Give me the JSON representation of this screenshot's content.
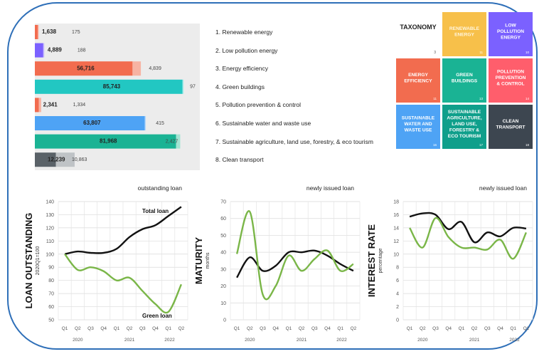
{
  "bar_chart": {
    "categories": [
      "1. Renewable energy",
      "2. Low pollution energy",
      "3. Energy efficiency",
      "4. Green buildings",
      "5. Pollution prevention & control",
      "6. Sustainable water and waste use",
      "7. Sustainable agriculture, land use, forestry, & eco tourism",
      "8. Clean transport"
    ],
    "values_a": [
      1638,
      4889,
      56716,
      85743,
      2341,
      63807,
      81968,
      12239
    ],
    "values_b": [
      175,
      188,
      4839,
      97,
      1334,
      415,
      2427,
      10863
    ],
    "labels_a": [
      "1,638",
      "4,889",
      "56,716",
      "85,743",
      "2,341",
      "63,807",
      "81,968",
      "12,239"
    ],
    "labels_b": [
      "175",
      "188",
      "4,839",
      "97",
      "1,334",
      "415",
      "2,427",
      "10,863"
    ],
    "colors_a": [
      "#f26c4f",
      "#7b61ff",
      "#f26c4f",
      "#22c7c2",
      "#f26c4f",
      "#4ea3f5",
      "#1ab394",
      "#5a6268"
    ],
    "colors_b": [
      "#f7b3a3",
      "#c9c0ff",
      "#f7b3a3",
      "#a6ecea",
      "#f7b3a3",
      "#b4d8fb",
      "#a3e4d3",
      "#bfc3c6"
    ]
  },
  "taxonomy": {
    "title": "TAXONOMY",
    "cells": [
      {
        "label": "RENEWABLE ENERGY",
        "num": "11",
        "color": "#f7c04a"
      },
      {
        "label": "LOW POLLUTION ENERGY",
        "num": "10",
        "color": "#7b61ff"
      },
      {
        "label": "ENERGY EFFICIENCY",
        "num": "11",
        "color": "#f26c4f"
      },
      {
        "label": "GREEN BUILDINGS",
        "num": "13",
        "color": "#1ab394"
      },
      {
        "label": "POLLUTION PREVENTION & CONTROL",
        "num": "14",
        "color": "#ff5e6c"
      },
      {
        "label": "SUSTAINABLE WATER AND WASTE USE",
        "num": "16",
        "color": "#4ea3f5"
      },
      {
        "label": "SUSTAINABLE AGRICULTURE, LAND USE, FORESTRY & ECO TOURISM",
        "num": "17",
        "color": "#0f9f8b"
      },
      {
        "label": "CLEAN TRANSPORT",
        "num": "18",
        "color": "#3d4650"
      }
    ],
    "corner_num": "3"
  },
  "chart_data": [
    {
      "type": "line",
      "title": "outstanding loan",
      "ylabel": "LOAN OUTSTANDING",
      "ylabel_sub": "2020Q1=100",
      "ylim": [
        50,
        140
      ],
      "yticks": [
        50,
        60,
        70,
        80,
        90,
        100,
        110,
        120,
        130,
        140
      ],
      "quarters": [
        "Q1",
        "Q2",
        "Q3",
        "Q4",
        "Q1",
        "Q2",
        "Q3",
        "Q4",
        "Q1",
        "Q2"
      ],
      "years": [
        "2020",
        "2021",
        "2022"
      ],
      "grid": true,
      "series": [
        {
          "name": "Total loan",
          "color": "#111111",
          "values": [
            100,
            102,
            101,
            101,
            104,
            113,
            119,
            122,
            129,
            136
          ]
        },
        {
          "name": "Green loan",
          "color": "#7ab648",
          "values": [
            100,
            88,
            90,
            87,
            80,
            82,
            72,
            62,
            56,
            77
          ]
        }
      ]
    },
    {
      "type": "line",
      "title": "newly issued loan",
      "ylabel": "MATURITY",
      "ylabel_sub": "months",
      "ylim": [
        0,
        70
      ],
      "yticks": [
        0,
        10,
        20,
        30,
        40,
        50,
        60,
        70
      ],
      "quarters": [
        "Q1",
        "Q2",
        "Q3",
        "Q4",
        "Q1",
        "Q2",
        "Q3",
        "Q4",
        "Q1",
        "Q2"
      ],
      "years": [
        "2020",
        "2021",
        "2022"
      ],
      "grid": true,
      "series": [
        {
          "name": "",
          "color": "#111111",
          "values": [
            25,
            37,
            29,
            32,
            40,
            40,
            41,
            38,
            33,
            29
          ]
        },
        {
          "name": "",
          "color": "#7ab648",
          "values": [
            39,
            64,
            15,
            20,
            38,
            29,
            36,
            41,
            29,
            33
          ]
        }
      ]
    },
    {
      "type": "line",
      "title": "newly issued loan",
      "ylabel": "INTEREST RATE",
      "ylabel_sub": "percentage",
      "ylim": [
        0,
        18
      ],
      "yticks": [
        0,
        2,
        4,
        6,
        8,
        10,
        12,
        14,
        16,
        18
      ],
      "quarters": [
        "Q1",
        "Q2",
        "Q3",
        "Q4",
        "Q1",
        "Q2",
        "Q3",
        "Q4",
        "Q1",
        "Q2"
      ],
      "years": [
        "2020",
        "2021",
        "2022"
      ],
      "grid": true,
      "series": [
        {
          "name": "",
          "color": "#111111",
          "values": [
            15.7,
            16.2,
            16.0,
            13.8,
            14.9,
            11.8,
            13.3,
            12.7,
            14.0,
            13.9
          ]
        },
        {
          "name": "",
          "color": "#7ab648",
          "values": [
            14.0,
            11.0,
            15.5,
            12.6,
            11.0,
            11.0,
            10.7,
            12.2,
            9.3,
            13.3
          ]
        }
      ]
    }
  ]
}
